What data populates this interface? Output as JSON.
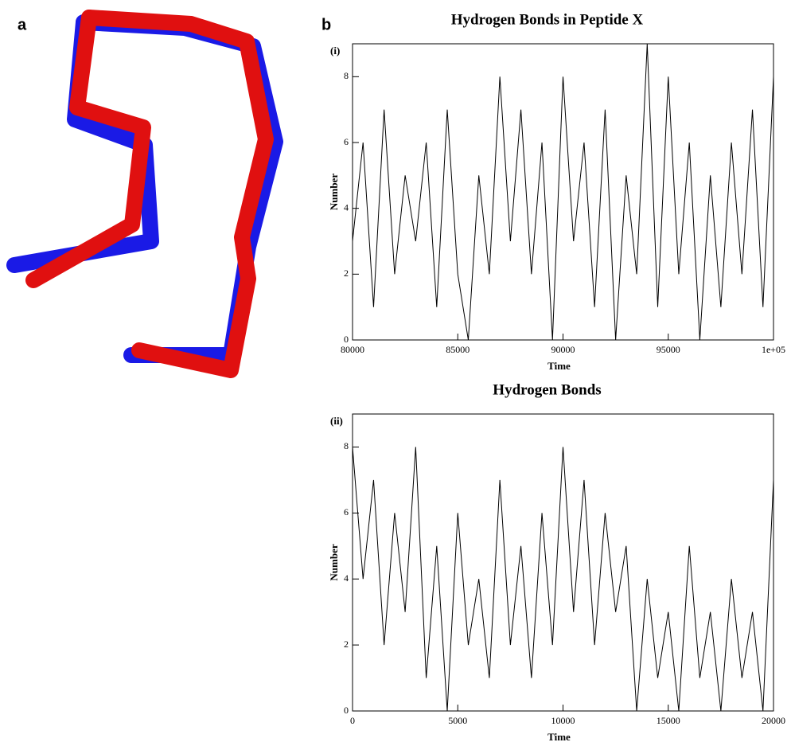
{
  "panel_labels": [
    "a",
    "b"
  ],
  "chart_data": [
    {
      "type": "line",
      "title": "Hydrogen Bonds in Peptide X",
      "panel": "(i)",
      "xlabel": "Time",
      "ylabel": "Number",
      "color": "#000000",
      "x": [
        80000,
        80500,
        81000,
        81500,
        82000,
        82500,
        83000,
        83500,
        84000,
        84500,
        85000,
        85500,
        86000,
        86500,
        87000,
        87500,
        88000,
        88500,
        89000,
        89500,
        90000,
        90500,
        91000,
        91500,
        92000,
        92500,
        93000,
        93500,
        94000,
        94500,
        95000,
        95500,
        96000,
        96500,
        97000,
        97500,
        98000,
        98500,
        99000,
        99500,
        100000
      ],
      "values": [
        3,
        6,
        1,
        7,
        2,
        5,
        3,
        6,
        1,
        7,
        2,
        0,
        5,
        2,
        8,
        3,
        7,
        2,
        6,
        0,
        8,
        3,
        6,
        1,
        7,
        0,
        5,
        2,
        9,
        1,
        8,
        2,
        6,
        0,
        5,
        1,
        6,
        2,
        7,
        1,
        8
      ],
      "xlim": [
        80000,
        100000
      ],
      "xticks": [
        80000,
        85000,
        90000,
        95000,
        {
          "value": 100000,
          "label": "1e+05"
        }
      ],
      "ylim": [
        0,
        9
      ],
      "yticks": [
        0,
        2,
        4,
        6,
        8
      ]
    },
    {
      "type": "line",
      "title": "Hydrogen Bonds",
      "panel": "(ii)",
      "xlabel": "Time",
      "ylabel": "Number",
      "color": "#000000",
      "x": [
        0,
        500,
        1000,
        1500,
        2000,
        2500,
        3000,
        3500,
        4000,
        4500,
        5000,
        5500,
        6000,
        6500,
        7000,
        7500,
        8000,
        8500,
        9000,
        9500,
        10000,
        10500,
        11000,
        11500,
        12000,
        12500,
        13000,
        13500,
        14000,
        14500,
        15000,
        15500,
        16000,
        16500,
        17000,
        17500,
        18000,
        18500,
        19000,
        19500,
        20000
      ],
      "values": [
        8,
        4,
        7,
        2,
        6,
        3,
        8,
        1,
        5,
        0,
        6,
        2,
        4,
        1,
        7,
        2,
        5,
        1,
        6,
        2,
        8,
        3,
        7,
        2,
        6,
        3,
        5,
        0,
        4,
        1,
        3,
        0,
        5,
        1,
        3,
        0,
        4,
        1,
        3,
        0,
        7
      ],
      "xlim": [
        0,
        20000
      ],
      "xticks": [
        0,
        5000,
        10000,
        15000,
        20000
      ],
      "ylim": [
        0,
        9
      ],
      "yticks": [
        0,
        2,
        4,
        6,
        8
      ]
    }
  ]
}
